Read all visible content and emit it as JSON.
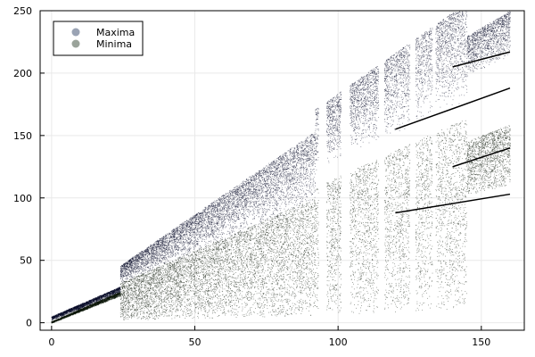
{
  "chart_data": {
    "type": "scatter",
    "title": "",
    "xlabel": "",
    "ylabel": "",
    "xlim": [
      -4,
      165
    ],
    "ylim": [
      -6,
      250
    ],
    "xticks": [
      0,
      50,
      100,
      150
    ],
    "yticks": [
      0,
      50,
      100,
      150,
      200,
      250
    ],
    "grid": true,
    "legend_position": "top-left",
    "series": [
      {
        "name": "Maxima",
        "color": "#050926",
        "legend_color": "#9aa3b4",
        "density": 24,
        "start_x": 0,
        "end_x": 160,
        "bands": [
          {
            "x_start": 0,
            "x_end": 24,
            "lower_slope": 0.92,
            "upper_slope": 1.0,
            "offset": 0
          },
          {
            "x_start": 24,
            "x_end": 92,
            "lower_slope": 0.95,
            "upper_slope": 1.58,
            "offset": 8
          },
          {
            "x_start": 92,
            "x_end": 145,
            "lower_slope": 1.08,
            "upper_slope": 1.62,
            "offset": 22
          },
          {
            "x_start": 145,
            "x_end": 160,
            "lower_slope": 1.12,
            "upper_slope": 1.35,
            "offset": 34
          }
        ],
        "branches": [
          {
            "x_start": 140,
            "x_end": 160,
            "y_start": 205,
            "y_end": 217
          },
          {
            "x_start": 120,
            "x_end": 160,
            "y_start": 155,
            "y_end": 188
          }
        ]
      },
      {
        "name": "Minima",
        "color": "#0b1608",
        "legend_color": "#9aa39a",
        "density": 24,
        "start_x": 0,
        "end_x": 160,
        "bands": [
          {
            "x_start": 0,
            "x_end": 24,
            "lower_slope": 0.83,
            "upper_slope": 0.92,
            "offset": 0
          },
          {
            "x_start": 24,
            "x_end": 92,
            "lower_slope": 0.0,
            "upper_slope": 0.95,
            "offset": 3
          },
          {
            "x_start": 92,
            "x_end": 145,
            "lower_slope": 0.0,
            "upper_slope": 1.0,
            "offset": 14
          },
          {
            "x_start": 145,
            "x_end": 160,
            "lower_slope": 0.58,
            "upper_slope": 0.88,
            "offset": 18
          }
        ],
        "branches": [
          {
            "x_start": 140,
            "x_end": 160,
            "y_start": 125,
            "y_end": 140
          },
          {
            "x_start": 120,
            "x_end": 160,
            "y_start": 88,
            "y_end": 103
          }
        ]
      }
    ]
  }
}
